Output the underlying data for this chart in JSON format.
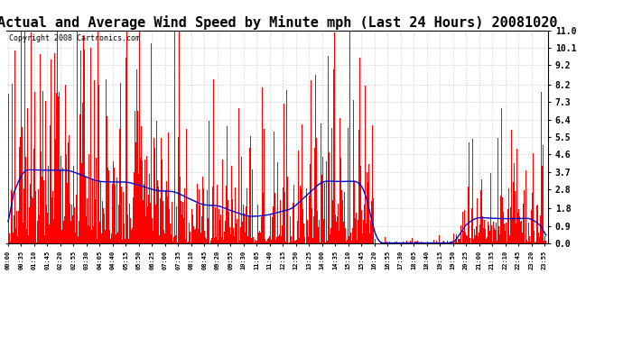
{
  "title": "Actual and Average Wind Speed by Minute mph (Last 24 Hours) 20081020",
  "copyright": "Copyright 2008 Cartronics.com",
  "bar_color": "#FF0000",
  "line_color": "#0000CC",
  "background_color": "#FFFFFF",
  "grid_color": "#CCCCCC",
  "yticks": [
    0.0,
    0.9,
    1.8,
    2.8,
    3.7,
    4.6,
    5.5,
    6.4,
    7.3,
    8.2,
    9.2,
    10.1,
    11.0
  ],
  "ylim": [
    0.0,
    11.0
  ],
  "title_fontsize": 11,
  "copyright_fontsize": 6,
  "xtick_step_minutes": 35,
  "n_points": 1440
}
